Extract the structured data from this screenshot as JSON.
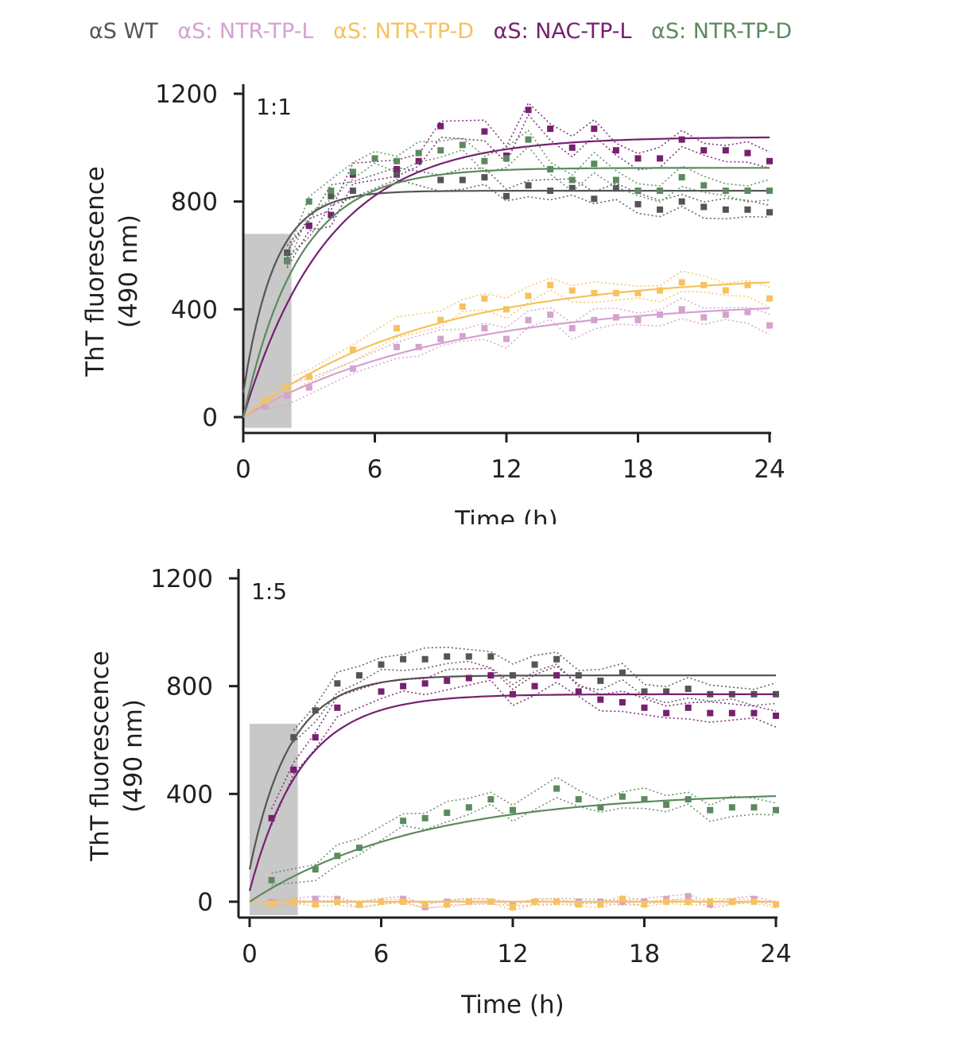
{
  "legend": [
    {
      "label": "αS WT",
      "color": "#555555"
    },
    {
      "label": "αS: NTR-TP-L",
      "color": "#d5a2cf"
    },
    {
      "label": "αS: NTR-TP-D",
      "color": "#f6c25d"
    },
    {
      "label": "αS: NAC-TP-L",
      "color": "#76206f"
    },
    {
      "label": "αS: NTR-TP-D",
      "color": "#5c8a5e"
    }
  ],
  "chart_data": [
    {
      "type": "scatter",
      "panel_label": "1:1",
      "xlabel": "Time (h)",
      "ylabel_lines": [
        "ThT fluorescence",
        "(490 nm)"
      ],
      "xlim": [
        0,
        24
      ],
      "ylim": [
        0,
        1200
      ],
      "xticks": [
        "0",
        "6",
        "12",
        "18",
        "24"
      ],
      "yticks": [
        "0",
        "400",
        "800",
        "1200"
      ],
      "shaded_region": {
        "x": [
          0,
          2.2
        ],
        "y": [
          -40,
          680
        ],
        "color": "#c8c8c8"
      },
      "series": [
        {
          "color": "#555555",
          "x": [
            2,
            3,
            4,
            5,
            7,
            9,
            10,
            11,
            12,
            13,
            14,
            15,
            16,
            17,
            18,
            19,
            20,
            21,
            22,
            23,
            24
          ],
          "y": [
            610,
            710,
            820,
            840,
            900,
            880,
            880,
            890,
            820,
            860,
            840,
            850,
            810,
            850,
            790,
            770,
            800,
            780,
            770,
            770,
            760
          ],
          "fit": {
            "a": 840,
            "k": 0.7,
            "y0": 90
          }
        },
        {
          "color": "#d5a2cf",
          "x": [
            1,
            2,
            3,
            5,
            7,
            8,
            9,
            10,
            11,
            12,
            13,
            14,
            15,
            16,
            17,
            18,
            19,
            20,
            21,
            22,
            23,
            24
          ],
          "y": [
            40,
            80,
            110,
            180,
            260,
            260,
            290,
            300,
            330,
            290,
            360,
            380,
            330,
            360,
            370,
            360,
            380,
            400,
            370,
            380,
            390,
            340
          ],
          "fit": {
            "a": 435,
            "k": 0.11,
            "y0": 0
          }
        },
        {
          "color": "#f6c25d",
          "x": [
            1,
            2,
            3,
            5,
            7,
            9,
            10,
            11,
            12,
            13,
            14,
            15,
            16,
            17,
            18,
            19,
            20,
            21,
            22,
            23,
            24
          ],
          "y": [
            60,
            110,
            150,
            250,
            330,
            360,
            410,
            440,
            400,
            450,
            490,
            470,
            460,
            460,
            460,
            470,
            500,
            490,
            470,
            490,
            440
          ],
          "fit": {
            "a": 530,
            "k": 0.12,
            "y0": 0
          }
        },
        {
          "color": "#76206f",
          "x": [
            2,
            3,
            4,
            5,
            7,
            8,
            9,
            11,
            12,
            13,
            14,
            15,
            16,
            17,
            18,
            19,
            20,
            21,
            22,
            23,
            24
          ],
          "y": [
            580,
            710,
            750,
            900,
            920,
            950,
            1080,
            1060,
            970,
            1140,
            1070,
            1000,
            1070,
            990,
            960,
            960,
            1030,
            990,
            990,
            980,
            950
          ],
          "fit": {
            "a": 1040,
            "k": 0.26,
            "y0": 0
          }
        },
        {
          "color": "#5c8a5e",
          "x": [
            2,
            3,
            4,
            5,
            6,
            7,
            8,
            9,
            10,
            11,
            12,
            13,
            14,
            15,
            16,
            17,
            18,
            19,
            20,
            21,
            22,
            23,
            24
          ],
          "y": [
            580,
            800,
            840,
            910,
            960,
            950,
            980,
            990,
            1010,
            950,
            960,
            1030,
            920,
            880,
            940,
            880,
            840,
            840,
            890,
            860,
            840,
            840,
            840
          ],
          "fit": {
            "a": 925,
            "k": 0.4,
            "y0": 0
          }
        }
      ]
    },
    {
      "type": "scatter",
      "panel_label": "1:5",
      "xlabel": "Time (h)",
      "ylabel_lines": [
        "ThT fluorescence",
        "(490 nm)"
      ],
      "xlim": [
        0,
        24
      ],
      "ylim": [
        0,
        1200
      ],
      "xticks": [
        "0",
        "6",
        "12",
        "18",
        "24"
      ],
      "yticks": [
        "0",
        "400",
        "800",
        "1200"
      ],
      "shaded_region": {
        "x": [
          0,
          2.2
        ],
        "y": [
          -50,
          660
        ],
        "color": "#c8c8c8"
      },
      "series": [
        {
          "color": "#555555",
          "x": [
            2,
            3,
            4,
            5,
            6,
            7,
            8,
            9,
            10,
            11,
            12,
            13,
            14,
            15,
            16,
            17,
            18,
            19,
            20,
            21,
            22,
            23,
            24
          ],
          "y": [
            610,
            710,
            810,
            840,
            880,
            900,
            900,
            910,
            910,
            910,
            840,
            880,
            900,
            840,
            820,
            850,
            780,
            780,
            790,
            770,
            770,
            770,
            770
          ],
          "fit": {
            "a": 840,
            "k": 0.55,
            "y0": 120
          }
        },
        {
          "color": "#d5a2cf",
          "x": [
            1,
            2,
            3,
            4,
            5,
            6,
            7,
            8,
            9,
            10,
            11,
            12,
            13,
            14,
            15,
            16,
            17,
            18,
            19,
            20,
            21,
            22,
            23,
            24
          ],
          "y": [
            0,
            0,
            10,
            10,
            -10,
            0,
            10,
            -20,
            0,
            0,
            0,
            -10,
            0,
            0,
            0,
            0,
            0,
            0,
            10,
            20,
            -10,
            0,
            10,
            -10
          ],
          "fit": {
            "a": 0,
            "k": 0.5,
            "y0": 0
          }
        },
        {
          "color": "#f6c25d",
          "x": [
            1,
            2,
            3,
            4,
            5,
            6,
            7,
            8,
            9,
            10,
            11,
            12,
            13,
            14,
            15,
            16,
            17,
            18,
            19,
            20,
            21,
            22,
            23,
            24
          ],
          "y": [
            -10,
            0,
            -10,
            0,
            -10,
            0,
            0,
            -10,
            -10,
            0,
            0,
            -20,
            0,
            0,
            -10,
            -10,
            10,
            -10,
            0,
            0,
            0,
            0,
            0,
            -10
          ],
          "fit": {
            "a": 0,
            "k": 0.5,
            "y0": 0
          }
        },
        {
          "color": "#76206f",
          "x": [
            1,
            2,
            3,
            4,
            6,
            7,
            8,
            9,
            10,
            11,
            12,
            13,
            14,
            15,
            16,
            17,
            18,
            19,
            20,
            21,
            22,
            23,
            24
          ],
          "y": [
            310,
            490,
            610,
            720,
            780,
            800,
            810,
            820,
            830,
            840,
            770,
            800,
            840,
            780,
            750,
            740,
            720,
            700,
            720,
            700,
            700,
            700,
            690
          ],
          "fit": {
            "a": 770,
            "k": 0.42,
            "y0": 40
          }
        },
        {
          "color": "#5c8a5e",
          "x": [
            1,
            3,
            4,
            5,
            7,
            8,
            9,
            10,
            11,
            12,
            14,
            15,
            16,
            17,
            18,
            19,
            20,
            21,
            22,
            23,
            24
          ],
          "y": [
            80,
            120,
            170,
            200,
            300,
            310,
            330,
            350,
            380,
            340,
            420,
            380,
            350,
            390,
            380,
            360,
            380,
            340,
            350,
            350,
            340
          ],
          "fit": {
            "a": 410,
            "k": 0.13,
            "y0": 0
          }
        }
      ]
    }
  ]
}
